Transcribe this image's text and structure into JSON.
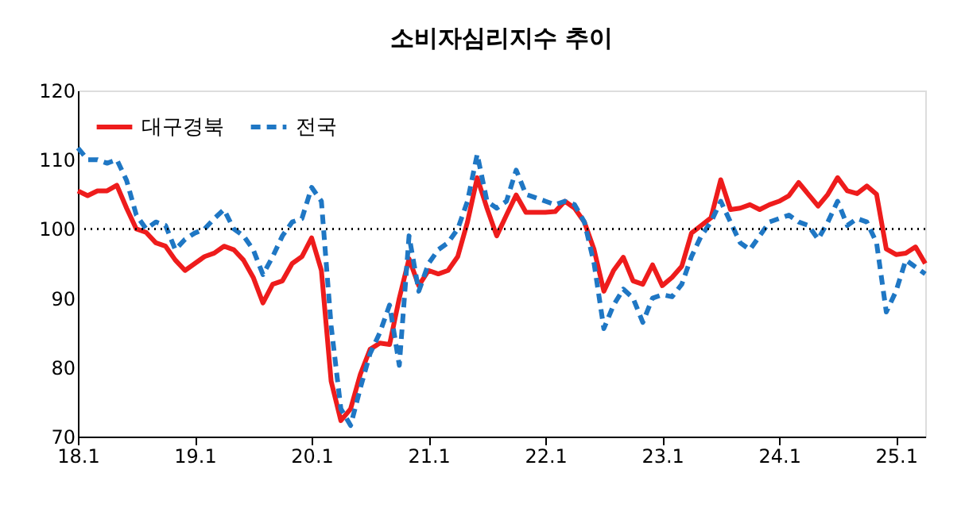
{
  "chart_data": {
    "type": "line",
    "title": "소비자심리지수 추이",
    "categories": [
      "18.1",
      null,
      null,
      null,
      null,
      null,
      null,
      null,
      null,
      null,
      null,
      null,
      "19.1",
      null,
      null,
      null,
      null,
      null,
      null,
      null,
      null,
      null,
      null,
      null,
      "20.1",
      null,
      null,
      null,
      null,
      null,
      null,
      null,
      null,
      null,
      null,
      null,
      "21.1",
      null,
      null,
      null,
      null,
      null,
      null,
      null,
      null,
      null,
      null,
      null,
      "22.1",
      null,
      null,
      null,
      null,
      null,
      null,
      null,
      null,
      null,
      null,
      null,
      "23.1",
      null,
      null,
      null,
      null,
      null,
      null,
      null,
      null,
      null,
      null,
      null,
      "24.1",
      null,
      null,
      null,
      null,
      null,
      null,
      null,
      null,
      null,
      null,
      null,
      "25.1",
      null,
      null,
      null
    ],
    "series": [
      {
        "name": "대구경북",
        "color": "#ee1c1c",
        "line_style": "solid",
        "values": [
          105.5,
          104.8,
          105.5,
          105.5,
          106.3,
          103,
          100,
          99.5,
          98,
          97.5,
          95.5,
          94,
          95,
          96,
          96.5,
          97.5,
          97,
          95.5,
          93,
          89.3,
          92,
          92.5,
          95,
          96,
          98.7,
          94,
          78,
          72.3,
          74,
          79,
          82.6,
          83.5,
          83.3,
          90,
          95.7,
          91.8,
          94,
          93.5,
          94,
          96,
          101,
          107.4,
          103,
          99,
          102,
          104.9,
          102.4,
          102.4,
          102.4,
          102.5,
          104,
          103,
          101,
          97,
          91,
          94,
          95.9,
          92.5,
          92,
          94.8,
          91.8,
          93,
          94.6,
          99.4,
          100.5,
          101.6,
          107.1,
          102.8,
          103,
          103.5,
          102.8,
          103.5,
          104,
          104.8,
          106.7,
          105,
          103.3,
          105,
          107.4,
          105.5,
          105.1,
          106.2,
          105,
          97.1,
          96.3,
          96.5,
          97.4,
          95
        ]
      },
      {
        "name": "전국",
        "color": "#1f77c4",
        "line_style": "dashed",
        "values": [
          111.7,
          110,
          110,
          109.5,
          110,
          107,
          102,
          100,
          101,
          100.5,
          97,
          98.5,
          99.4,
          100,
          101.5,
          102.8,
          100,
          99,
          97,
          93.4,
          96,
          99,
          101,
          101.5,
          106,
          104,
          86,
          74,
          71.6,
          77,
          82,
          85,
          89,
          80.3,
          99,
          91,
          95,
          97,
          98,
          100,
          104,
          110.8,
          104,
          103,
          104,
          108.5,
          105,
          104.5,
          104,
          103.5,
          104,
          103.5,
          101,
          95,
          85.6,
          89,
          91.3,
          90,
          86.5,
          90,
          90.5,
          90.2,
          92,
          96,
          99,
          101,
          104,
          101,
          98,
          97,
          99,
          101,
          101.5,
          102,
          101,
          100.5,
          98.5,
          101,
          104,
          100.5,
          101.5,
          101,
          98,
          88,
          91,
          95.5,
          94.5,
          93.5
        ]
      }
    ],
    "ylim": [
      70,
      120
    ],
    "yticks": [
      70,
      80,
      90,
      100,
      110,
      120
    ],
    "ref_lines": [
      {
        "axis": "y",
        "value": 100,
        "color": "#000000",
        "line_style": "dotted"
      }
    ],
    "legend": "top left",
    "grid": false,
    "marker": "none"
  }
}
